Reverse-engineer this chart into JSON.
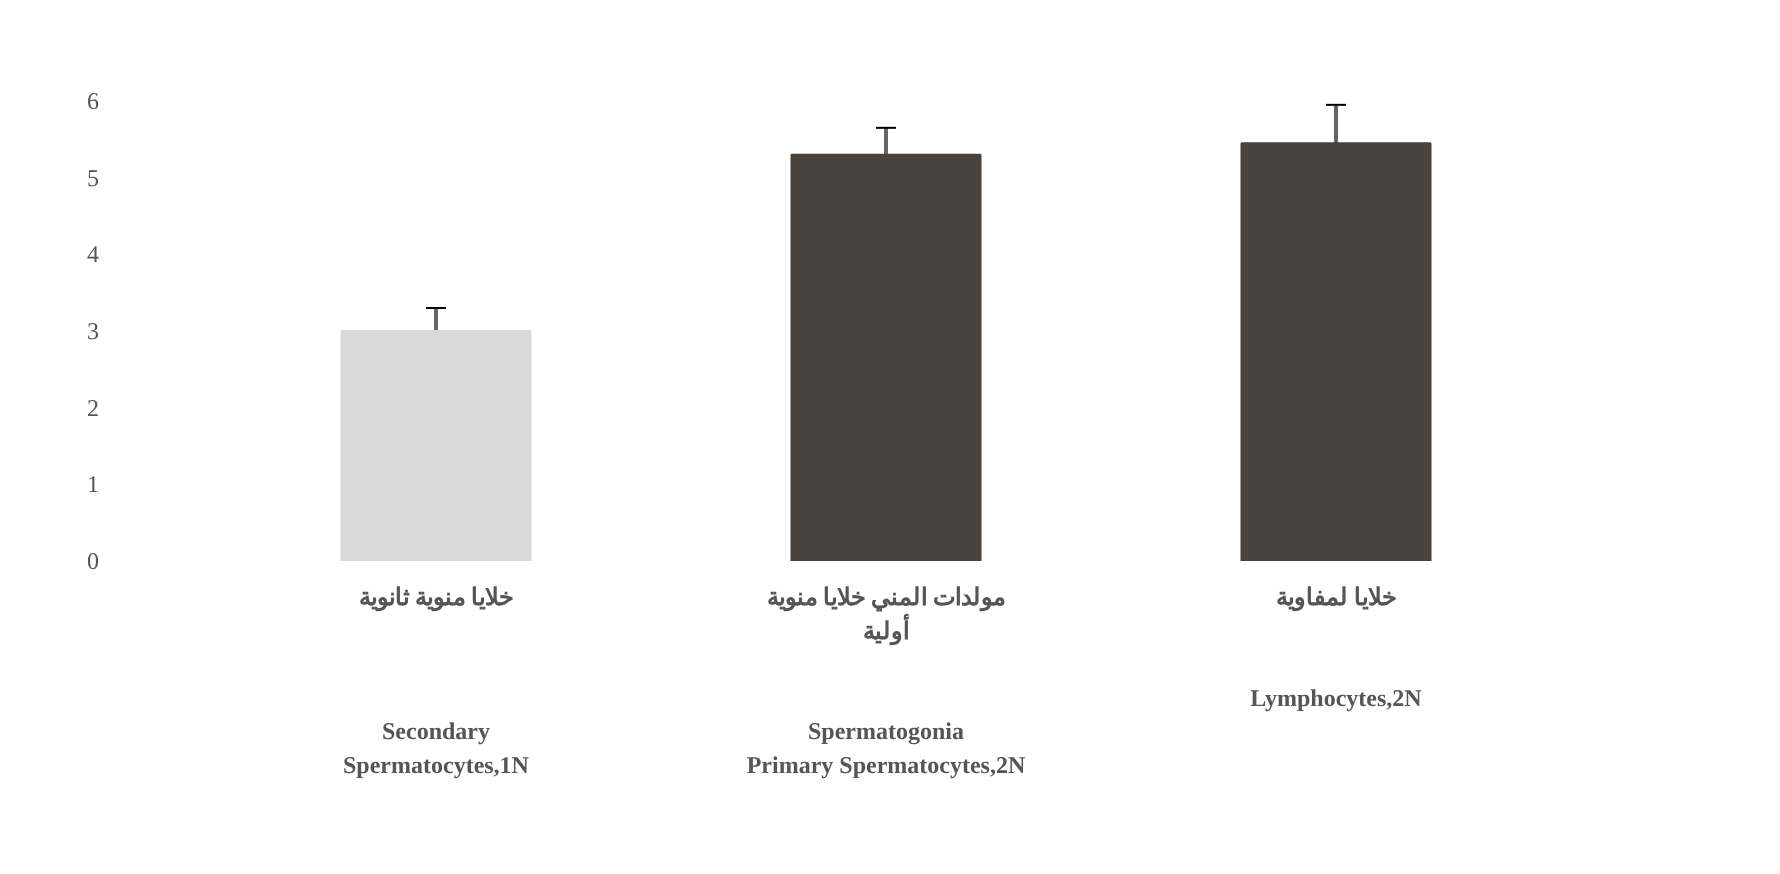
{
  "chart_data": {
    "type": "bar",
    "categories": [
      "خلايا منوية ثانوية\n\n\n\nSecondary\nSpermatocytes,1N",
      "مولدات المني خلايا منوية\nأولية\n\n\nSpermatogonia\nPrimary Spermatocytes,2N",
      "خلايا لمفاوية\n\n\nLymphocytes,2N"
    ],
    "values": [
      3.0,
      5.3,
      5.45
    ],
    "errors": [
      0.3,
      0.35,
      0.5
    ],
    "colors": [
      "#d9d9d9",
      "#4a423d",
      "#4a423d"
    ],
    "ylim": [
      0,
      6
    ],
    "yticks": [
      0,
      1,
      2,
      3,
      4,
      5,
      6
    ],
    "grid": false
  }
}
